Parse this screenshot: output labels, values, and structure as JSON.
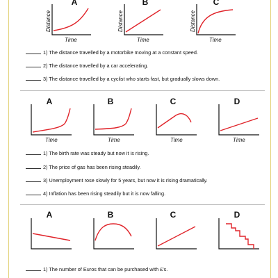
{
  "section1": {
    "labels": [
      "A",
      "B",
      "C"
    ],
    "ylabel": "Distance",
    "xlabel": "Time",
    "statements": [
      "1) The distance travelled by a motorbike moving at a constant speed.",
      "2) The distance travelled by a car accelerating.",
      "3) The distance travelled by a cyclist who starts fast, but gradually slows down."
    ]
  },
  "section2": {
    "labels": [
      "A",
      "B",
      "C",
      "D"
    ],
    "xlabel": "Time",
    "statements": [
      "1) The birth rate was steady but now it is rising.",
      "2) The price of gas has been rising steadily.",
      "3) Unemployment rose slowly for 5 years, but now it is rising dramatically.",
      "4) Inflation has been rising steadily but it is now falling."
    ]
  },
  "section3": {
    "labels": [
      "A",
      "B",
      "C",
      "D"
    ],
    "statements": [
      "1) The number of Euros that can be purchased with £'s."
    ]
  },
  "colors": {
    "curve": "#e0242a",
    "axis": "#111111",
    "border": "#e3d27a"
  }
}
